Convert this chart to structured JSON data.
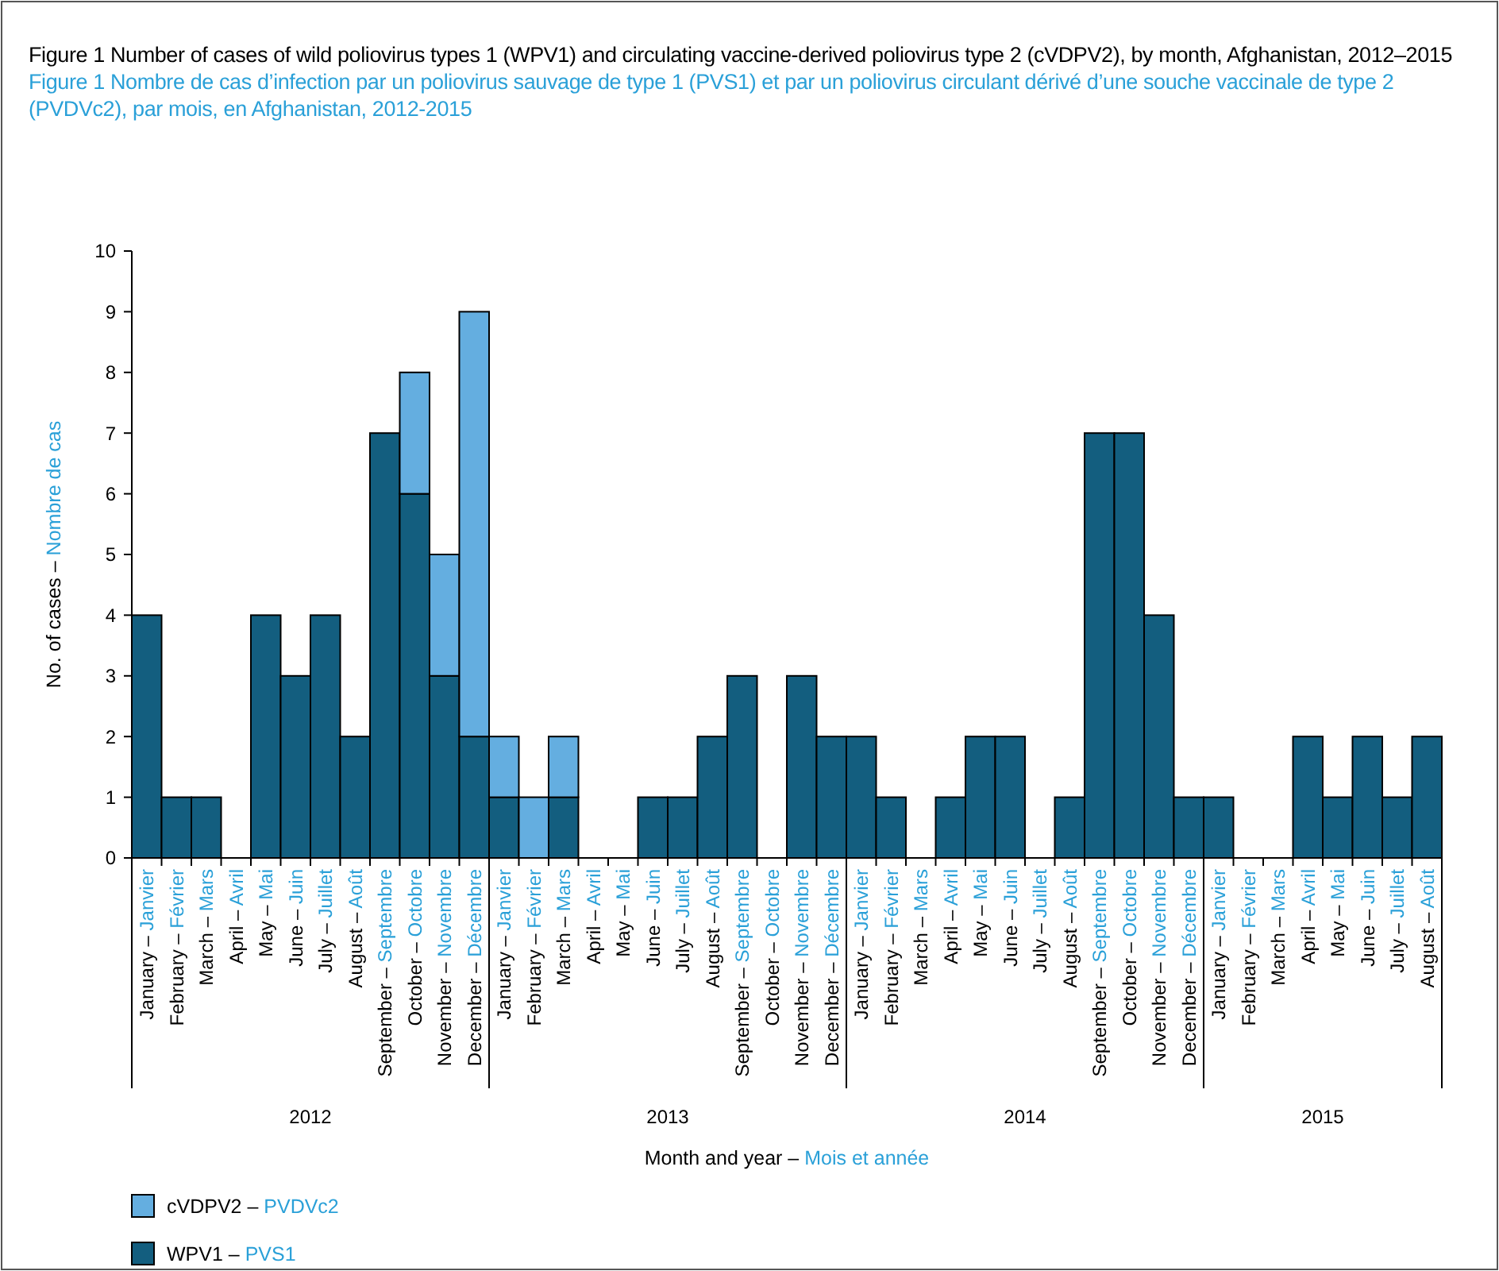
{
  "chart_data": {
    "type": "bar",
    "stacked": true,
    "title": "Figure 1  Number of cases of wild poliovirus types 1 (WPV1) and circulating vaccine-derived poliovirus type 2 (cVDPV2), by month, Afghanistan, 2012–2015",
    "subtitle": "Figure 1  Nombre de cas d’infection par un poliovirus sauvage de type 1 (PVS1) et par un poliovirus circulant dérivé d’une souche vaccinale de type 2 (PVDVc2), par mois, en Afghanistan, 2012-2015",
    "xlabel": "Month and year – Mois et année",
    "ylabel": "No. of cases – Nombre de cas",
    "categories": [
      "January – Janvier",
      "February – Février",
      "March – Mars",
      "April – Avril",
      "May – Mai",
      "June – Juin",
      "July – Juillet",
      "August – Août",
      "September – Septembre",
      "October – Octobre",
      "November – Novembre",
      "December – Décembre",
      "January – Janvier",
      "February – Février",
      "March – Mars",
      "April – Avril",
      "May – Mai",
      "June – Juin",
      "July – Juillet",
      "August – Août",
      "September – Septembre",
      "October – Octobre",
      "November – Novembre",
      "December – Décembre",
      "January – Janvier",
      "February – Février",
      "March – Mars",
      "April – Avril",
      "May – Mai",
      "June – Juin",
      "July – Juillet",
      "August – Août",
      "September – Septembre",
      "October – Octobre",
      "November – Novembre",
      "December – Décembre",
      "January – Janvier",
      "February – Février",
      "March – Mars",
      "April – Avril",
      "May – Mai",
      "June – Juin",
      "July – Juillet",
      "August – Août"
    ],
    "series": [
      {
        "name": "WPV1 – PVS1",
        "color": "#135e7f",
        "values": [
          4,
          1,
          1,
          0,
          4,
          3,
          4,
          2,
          7,
          6,
          3,
          2,
          1,
          0,
          1,
          0,
          0,
          1,
          1,
          2,
          3,
          0,
          3,
          2,
          2,
          1,
          0,
          1,
          2,
          2,
          0,
          1,
          7,
          7,
          4,
          1,
          1,
          0,
          0,
          2,
          1,
          2,
          1,
          2
        ]
      },
      {
        "name": "cVDPV2 – PVDVc2",
        "color": "#64aee0",
        "values": [
          0,
          0,
          0,
          0,
          0,
          0,
          0,
          0,
          0,
          2,
          2,
          7,
          1,
          1,
          1,
          0,
          0,
          0,
          0,
          0,
          0,
          0,
          0,
          0,
          0,
          0,
          0,
          0,
          0,
          0,
          0,
          0,
          0,
          0,
          0,
          0,
          0,
          0,
          0,
          0,
          0,
          0,
          0,
          0
        ]
      }
    ],
    "annotations": [
      "2012",
      "2013",
      "2014",
      "2015"
    ],
    "ylim": [
      0,
      10
    ],
    "yticks": [
      0,
      1,
      2,
      3,
      4,
      5,
      6,
      7,
      8,
      9,
      10
    ],
    "grid": false,
    "legend": "bottom left"
  }
}
